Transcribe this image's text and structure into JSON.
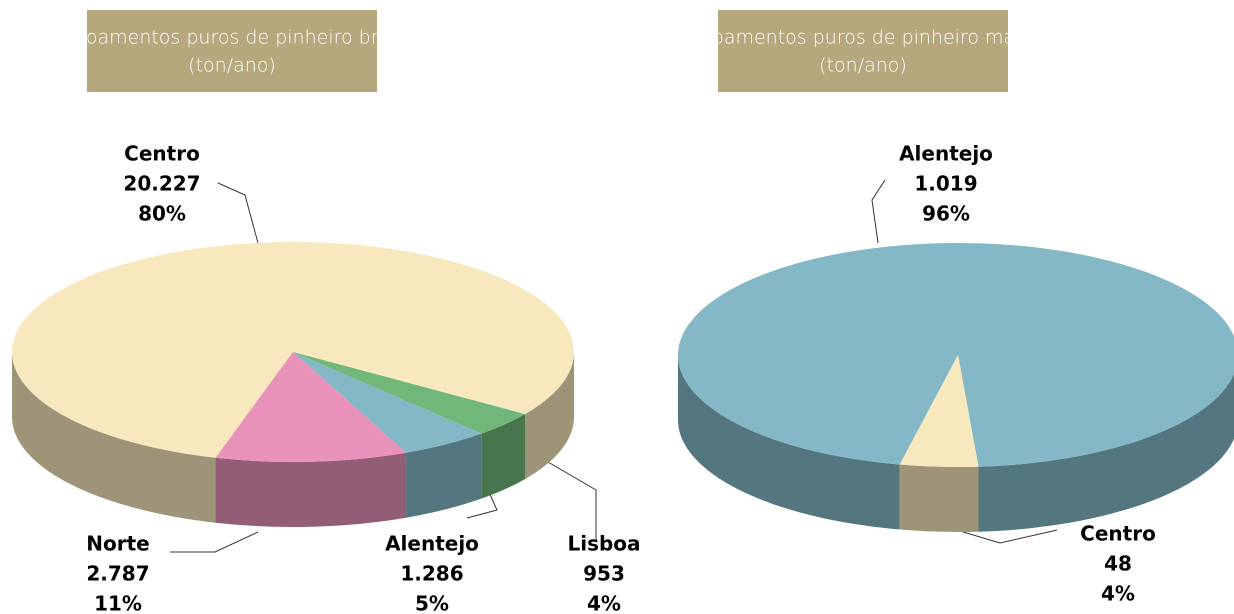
{
  "chart_data": [
    {
      "type": "pie",
      "title": "povoamentos puros de pinheiro bravo",
      "subtitle": "(ton/ano)",
      "categories": [
        "Centro",
        "Lisboa",
        "Alentejo",
        "Norte"
      ],
      "values": [
        20227,
        953,
        1286,
        2787
      ],
      "value_labels": [
        "20.227",
        "953",
        "1.286",
        "2.787"
      ],
      "percentages": [
        80,
        4,
        5,
        11
      ],
      "percentage_labels": [
        "80%",
        "4%",
        "5%",
        "11%"
      ],
      "colors": [
        "#f7e9bd",
        "#72b77a",
        "#84b8c6",
        "#e891b9"
      ]
    },
    {
      "type": "pie",
      "title": "povoamentos puros de pinheiro manso",
      "subtitle": "(ton/ano)",
      "categories": [
        "Alentejo",
        "Centro"
      ],
      "values": [
        1019,
        48
      ],
      "value_labels": [
        "1.019",
        "48"
      ],
      "percentages": [
        96,
        4
      ],
      "percentage_labels": [
        "96%",
        "4%"
      ],
      "colors": [
        "#84b8c6",
        "#f7e9bd"
      ]
    }
  ]
}
